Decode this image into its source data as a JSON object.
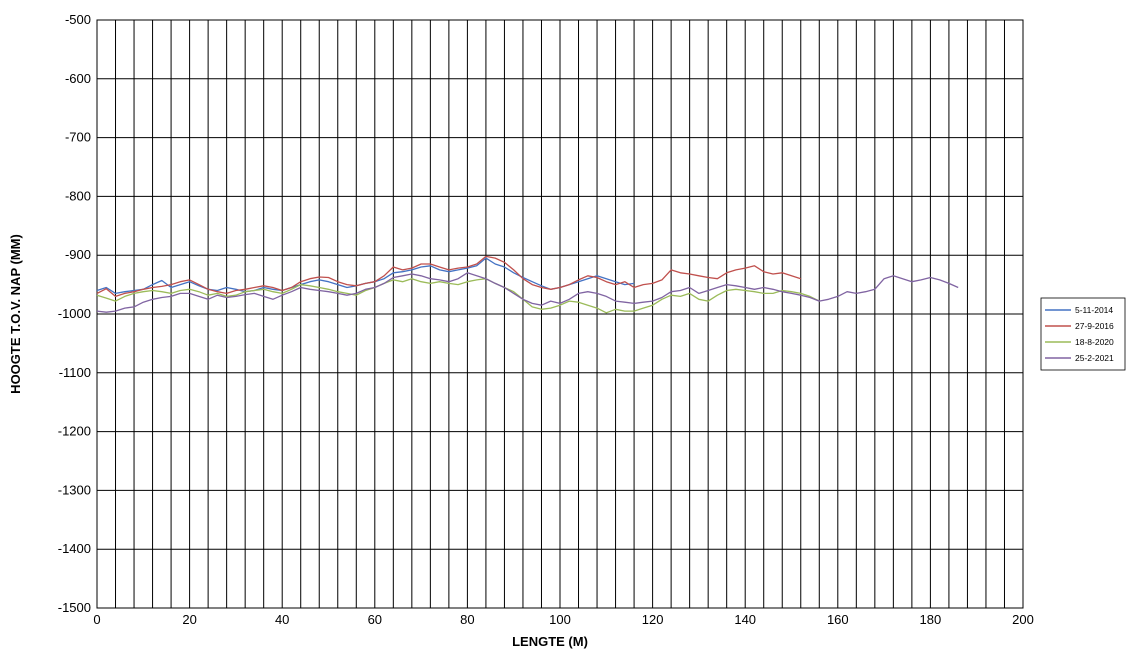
{
  "chart_data": {
    "type": "line",
    "title": "",
    "xlabel": "LENGTE (M)",
    "ylabel": "HOOGTE T.O.V. NAP (MM)",
    "xlim": [
      0,
      200
    ],
    "ylim": [
      -1500,
      -500
    ],
    "x_ticks": [
      0,
      20,
      40,
      60,
      80,
      100,
      120,
      140,
      160,
      180,
      200
    ],
    "y_ticks": [
      -500,
      -600,
      -700,
      -800,
      -900,
      -1000,
      -1100,
      -1200,
      -1300,
      -1400,
      -1500
    ],
    "x_minor_grid_step": 4,
    "grid": true,
    "legend_position": "right",
    "series": [
      {
        "name": "5-11-2014",
        "color": "#4472c4",
        "x": [
          0,
          2,
          4,
          6,
          8,
          10,
          12,
          14,
          16,
          18,
          20,
          22,
          24,
          26,
          28,
          30,
          32,
          34,
          36,
          38,
          40,
          42,
          44,
          46,
          48,
          50,
          52,
          54,
          56,
          58,
          60,
          62,
          64,
          66,
          68,
          70,
          72,
          74,
          76,
          78,
          80,
          82,
          84,
          86,
          88,
          90,
          92,
          94,
          96,
          98,
          100,
          102,
          104,
          106,
          108,
          110,
          112,
          114,
          116
        ],
        "y": [
          -960,
          -955,
          -965,
          -962,
          -960,
          -958,
          -950,
          -943,
          -955,
          -950,
          -945,
          -952,
          -958,
          -960,
          -955,
          -958,
          -962,
          -960,
          -955,
          -958,
          -960,
          -955,
          -950,
          -945,
          -942,
          -945,
          -950,
          -955,
          -952,
          -948,
          -945,
          -940,
          -930,
          -928,
          -925,
          -920,
          -918,
          -925,
          -928,
          -925,
          -922,
          -918,
          -905,
          -915,
          -920,
          -930,
          -938,
          -945,
          -952,
          -958,
          -955,
          -950,
          -945,
          -940,
          -935,
          -940,
          -945,
          -950,
          -948
        ]
      },
      {
        "name": "27-9-2016",
        "color": "#c0504d",
        "x": [
          0,
          2,
          4,
          6,
          8,
          10,
          12,
          14,
          16,
          18,
          20,
          22,
          24,
          26,
          28,
          30,
          32,
          34,
          36,
          38,
          40,
          42,
          44,
          46,
          48,
          50,
          52,
          54,
          56,
          58,
          60,
          62,
          64,
          66,
          68,
          70,
          72,
          74,
          76,
          78,
          80,
          82,
          84,
          86,
          88,
          90,
          92,
          94,
          96,
          98,
          100,
          102,
          104,
          106,
          108,
          110,
          112,
          114,
          116,
          118,
          120,
          122,
          124,
          126,
          128,
          130,
          132,
          134,
          136,
          138,
          140,
          142,
          144,
          146,
          148,
          150,
          152
        ],
        "y": [
          -965,
          -957,
          -970,
          -965,
          -962,
          -958,
          -955,
          -953,
          -950,
          -945,
          -942,
          -950,
          -958,
          -962,
          -965,
          -960,
          -958,
          -955,
          -952,
          -955,
          -960,
          -955,
          -945,
          -940,
          -937,
          -938,
          -945,
          -950,
          -952,
          -948,
          -945,
          -935,
          -920,
          -925,
          -922,
          -915,
          -915,
          -920,
          -925,
          -922,
          -920,
          -915,
          -902,
          -905,
          -912,
          -925,
          -940,
          -950,
          -955,
          -958,
          -955,
          -950,
          -942,
          -935,
          -938,
          -945,
          -950,
          -945,
          -955,
          -950,
          -948,
          -942,
          -925,
          -930,
          -932,
          -935,
          -938,
          -940,
          -930,
          -925,
          -922,
          -918,
          -928,
          -932,
          -930,
          -935,
          -940
        ]
      },
      {
        "name": "18-8-2020",
        "color": "#9bbb59",
        "x": [
          0,
          2,
          4,
          6,
          8,
          10,
          12,
          14,
          16,
          18,
          20,
          22,
          24,
          26,
          28,
          30,
          32,
          34,
          36,
          38,
          40,
          42,
          44,
          46,
          48,
          50,
          52,
          54,
          56,
          58,
          60,
          62,
          64,
          66,
          68,
          70,
          72,
          74,
          76,
          78,
          80,
          82,
          84,
          86,
          88,
          90,
          92,
          94,
          96,
          98,
          100,
          102,
          104,
          106,
          108,
          110,
          112,
          114,
          116,
          118,
          120,
          122,
          124,
          126,
          128,
          130,
          132,
          134,
          136,
          138,
          140,
          142,
          144,
          146,
          148,
          150,
          152,
          154,
          156
        ],
        "y": [
          -968,
          -973,
          -978,
          -970,
          -965,
          -962,
          -960,
          -962,
          -965,
          -960,
          -958,
          -962,
          -968,
          -965,
          -970,
          -968,
          -962,
          -960,
          -958,
          -962,
          -965,
          -958,
          -950,
          -952,
          -955,
          -958,
          -962,
          -965,
          -968,
          -960,
          -955,
          -948,
          -942,
          -945,
          -940,
          -945,
          -948,
          -945,
          -948,
          -950,
          -945,
          -942,
          -940,
          -948,
          -955,
          -962,
          -975,
          -988,
          -992,
          -990,
          -985,
          -978,
          -980,
          -985,
          -990,
          -998,
          -992,
          -995,
          -995,
          -990,
          -985,
          -975,
          -968,
          -970,
          -965,
          -975,
          -978,
          -968,
          -960,
          -958,
          -960,
          -962,
          -965,
          -965,
          -960,
          -962,
          -965,
          -970,
          -978
        ]
      },
      {
        "name": "25-2-2021",
        "color": "#8064a2",
        "x": [
          0,
          2,
          4,
          6,
          8,
          10,
          12,
          14,
          16,
          18,
          20,
          22,
          24,
          26,
          28,
          30,
          32,
          34,
          36,
          38,
          40,
          42,
          44,
          46,
          48,
          50,
          52,
          54,
          56,
          58,
          60,
          62,
          64,
          66,
          68,
          70,
          72,
          74,
          76,
          78,
          80,
          82,
          84,
          86,
          88,
          90,
          92,
          94,
          96,
          98,
          100,
          102,
          104,
          106,
          108,
          110,
          112,
          114,
          116,
          118,
          120,
          122,
          124,
          126,
          128,
          130,
          132,
          134,
          136,
          138,
          140,
          142,
          144,
          146,
          148,
          150,
          152,
          154,
          156,
          158,
          160,
          162,
          164,
          166,
          168,
          170,
          172,
          174,
          176,
          178,
          180,
          182,
          184,
          186
        ],
        "y": [
          -995,
          -997,
          -995,
          -990,
          -988,
          -980,
          -975,
          -972,
          -970,
          -965,
          -965,
          -970,
          -975,
          -968,
          -972,
          -970,
          -967,
          -965,
          -970,
          -975,
          -968,
          -962,
          -955,
          -958,
          -960,
          -962,
          -965,
          -968,
          -965,
          -958,
          -955,
          -948,
          -938,
          -935,
          -932,
          -935,
          -940,
          -942,
          -945,
          -940,
          -930,
          -935,
          -940,
          -948,
          -955,
          -965,
          -975,
          -982,
          -985,
          -978,
          -982,
          -975,
          -965,
          -962,
          -965,
          -970,
          -978,
          -980,
          -982,
          -980,
          -978,
          -972,
          -962,
          -960,
          -955,
          -965,
          -960,
          -955,
          -950,
          -952,
          -955,
          -958,
          -955,
          -958,
          -962,
          -965,
          -968,
          -972,
          -978,
          -975,
          -970,
          -962,
          -965,
          -962,
          -958,
          -940,
          -935,
          -940,
          -945,
          -942,
          -938,
          -942,
          -948,
          -955
        ]
      }
    ]
  }
}
